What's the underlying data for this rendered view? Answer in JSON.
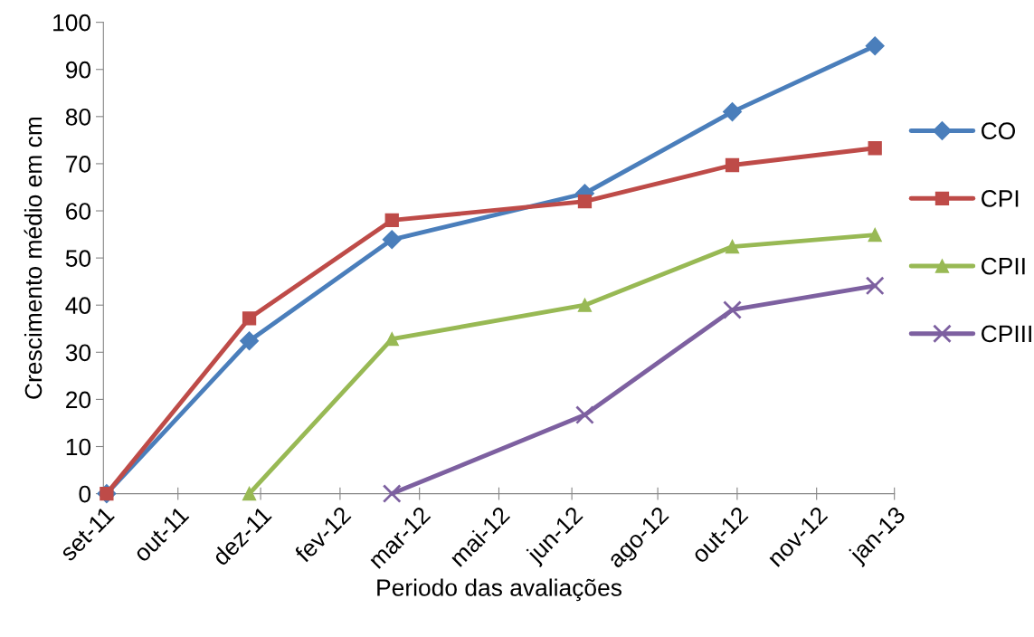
{
  "chart_data": {
    "type": "line",
    "xlabel": "Periodo das avaliações",
    "ylabel": "Crescimento médio em cm",
    "xlim": [
      "2011-09-15",
      "2013-01-15"
    ],
    "xticks": [
      {
        "value": "2011-09-15",
        "label": "set-11"
      },
      {
        "value": "2011-10-31",
        "label": "out-11"
      },
      {
        "value": "2011-12-21",
        "label": "dez-11"
      },
      {
        "value": "2012-02-08",
        "label": "fev-12"
      },
      {
        "value": "2012-03-28",
        "label": "mar-12"
      },
      {
        "value": "2012-05-16",
        "label": "mai-12"
      },
      {
        "value": "2012-06-30",
        "label": "jun-12"
      },
      {
        "value": "2012-08-22",
        "label": "ago-12"
      },
      {
        "value": "2012-10-10",
        "label": "out-12"
      },
      {
        "value": "2012-11-28",
        "label": "nov-12"
      },
      {
        "value": "2013-01-15",
        "label": "jan-13"
      }
    ],
    "ylim": [
      0,
      100
    ],
    "yticks": [
      0,
      10,
      20,
      30,
      40,
      50,
      60,
      70,
      80,
      90,
      100
    ],
    "grid": false,
    "legend": "right",
    "series": [
      {
        "name": "CO",
        "color": "#4a7ebb",
        "marker": "diamond",
        "x": [
          "2011-09-17",
          "2011-12-14",
          "2012-03-11",
          "2012-07-08",
          "2012-10-07",
          "2013-01-03"
        ],
        "values": [
          0,
          32.4,
          53.9,
          63.7,
          81,
          95
        ]
      },
      {
        "name": "CPI",
        "color": "#be4b48",
        "marker": "square",
        "x": [
          "2011-09-17",
          "2011-12-14",
          "2012-03-11",
          "2012-07-08",
          "2012-10-07",
          "2013-01-03"
        ],
        "values": [
          0,
          37.2,
          58,
          62,
          69.7,
          73.3
        ]
      },
      {
        "name": "CPII",
        "color": "#98b954",
        "marker": "triangle",
        "x": [
          "2011-12-14",
          "2012-03-11",
          "2012-07-08",
          "2012-10-07",
          "2013-01-03"
        ],
        "values": [
          0,
          32.8,
          40,
          52.4,
          54.9
        ]
      },
      {
        "name": "CPIII",
        "color": "#7d60a0",
        "marker": "cross",
        "x": [
          "2012-03-11",
          "2012-07-08",
          "2012-10-07",
          "2013-01-03"
        ],
        "values": [
          0,
          16.7,
          39,
          44.1
        ]
      }
    ]
  }
}
